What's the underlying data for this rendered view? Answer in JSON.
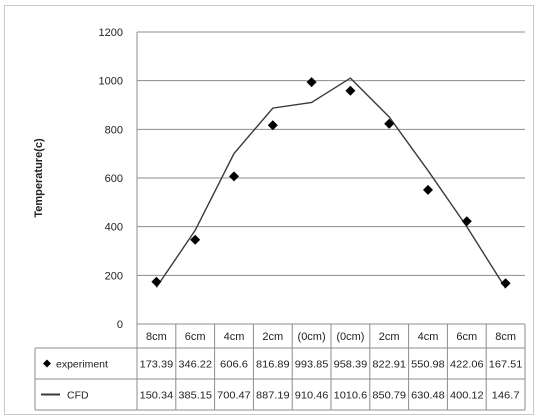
{
  "chart_data": {
    "type": "line",
    "ylabel": "Temperature(c)",
    "xlabel": "",
    "ylim": [
      0,
      1200
    ],
    "yticks": [
      0,
      200,
      400,
      600,
      800,
      1000,
      1200
    ],
    "grid": true,
    "categories": [
      "8cm",
      "6cm",
      "4cm",
      "2cm",
      "(0cm)",
      "(0cm)",
      "2cm",
      "4cm",
      "6cm",
      "8cm"
    ],
    "series": [
      {
        "name": "experiment",
        "marker": "diamond",
        "line": false,
        "color": "#000000",
        "values": [
          173.39,
          346.22,
          606.6,
          816.89,
          993.85,
          958.39,
          822.91,
          550.98,
          422.06,
          167.51
        ],
        "labels": [
          "173.39",
          "346.22",
          "606.6",
          "816.89",
          "993.85",
          "958.39",
          "822.91",
          "550.98",
          "422.06",
          "167.51"
        ]
      },
      {
        "name": "CFD",
        "marker": "none",
        "line": true,
        "color": "#3a3a3a",
        "values": [
          150.34,
          385.15,
          700.47,
          887.19,
          910.46,
          1010.6,
          850.79,
          630.48,
          400.12,
          146.7
        ],
        "labels": [
          "150.34",
          "385.15",
          "700.47",
          "887.19",
          "910.46",
          "1010.6",
          "850.79",
          "630.48",
          "400.12",
          "146.7"
        ]
      }
    ],
    "data_table": true
  }
}
